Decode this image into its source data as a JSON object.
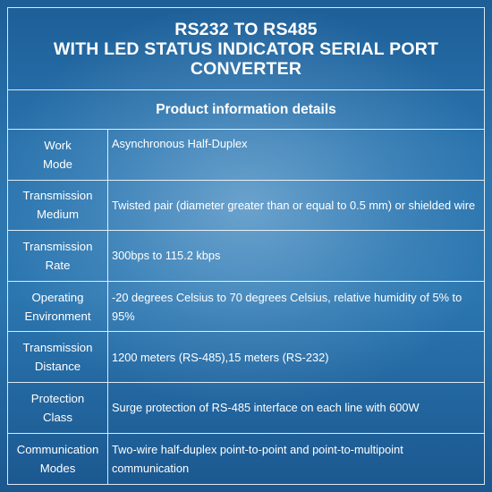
{
  "title": {
    "line1": "RS232 TO RS485",
    "line2": "WITH LED STATUS INDICATOR SERIAL PORT",
    "line3": "CONVERTER"
  },
  "subtitle": "Product information details",
  "rows": [
    {
      "label": "Work\nMode",
      "value": "Asynchronous Half-Duplex"
    },
    {
      "label": "Transmission\nMedium",
      "value": "Twisted pair (diameter greater than or equal to 0.5 mm) or shielded wire"
    },
    {
      "label": "Transmission\nRate",
      "value": "300bps to 115.2 kbps"
    },
    {
      "label": "Operating\nEnvironment",
      "value": "-20 degrees Celsius to 70 degrees Celsius, relative humidity of 5% to 95%"
    },
    {
      "label": "Transmission\nDistance",
      "value": "1200 meters (RS-485),15 meters (RS-232)"
    },
    {
      "label": "Protection\nClass",
      "value": "Surge protection of RS-485 interface on each line with 600W"
    },
    {
      "label": "Communication\nModes",
      "value": "Two-wire half-duplex point-to-point and point-to-multipoint communication"
    }
  ]
}
